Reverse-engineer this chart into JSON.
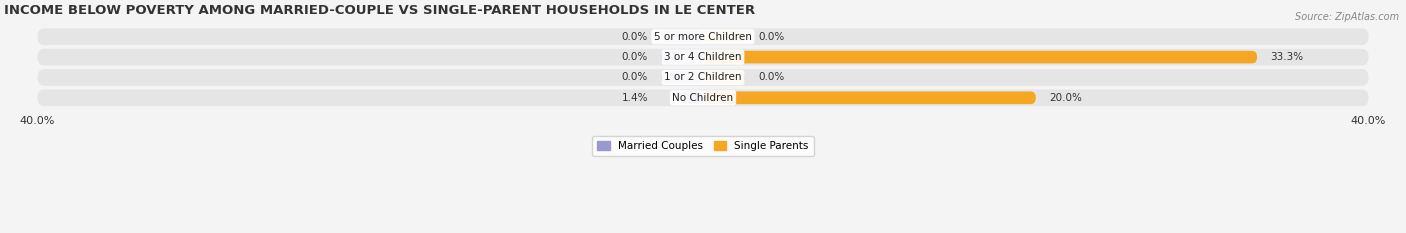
{
  "title": "INCOME BELOW POVERTY AMONG MARRIED-COUPLE VS SINGLE-PARENT HOUSEHOLDS IN LE CENTER",
  "source": "Source: ZipAtlas.com",
  "categories": [
    "No Children",
    "1 or 2 Children",
    "3 or 4 Children",
    "5 or more Children"
  ],
  "married_couples": [
    1.4,
    0.0,
    0.0,
    0.0
  ],
  "single_parents": [
    20.0,
    0.0,
    33.3,
    0.0
  ],
  "married_color": "#9999cc",
  "single_color": "#f5a623",
  "married_zero_color": "#bbbbdd",
  "single_zero_color": "#f5d08a",
  "married_label": "Married Couples",
  "single_label": "Single Parents",
  "xlim": 40.0,
  "background_color": "#f4f4f4",
  "bar_bg_color": "#e5e5e5",
  "title_fontsize": 9.5,
  "source_fontsize": 7,
  "label_fontsize": 7.5,
  "category_fontsize": 7.5,
  "tick_fontsize": 8
}
